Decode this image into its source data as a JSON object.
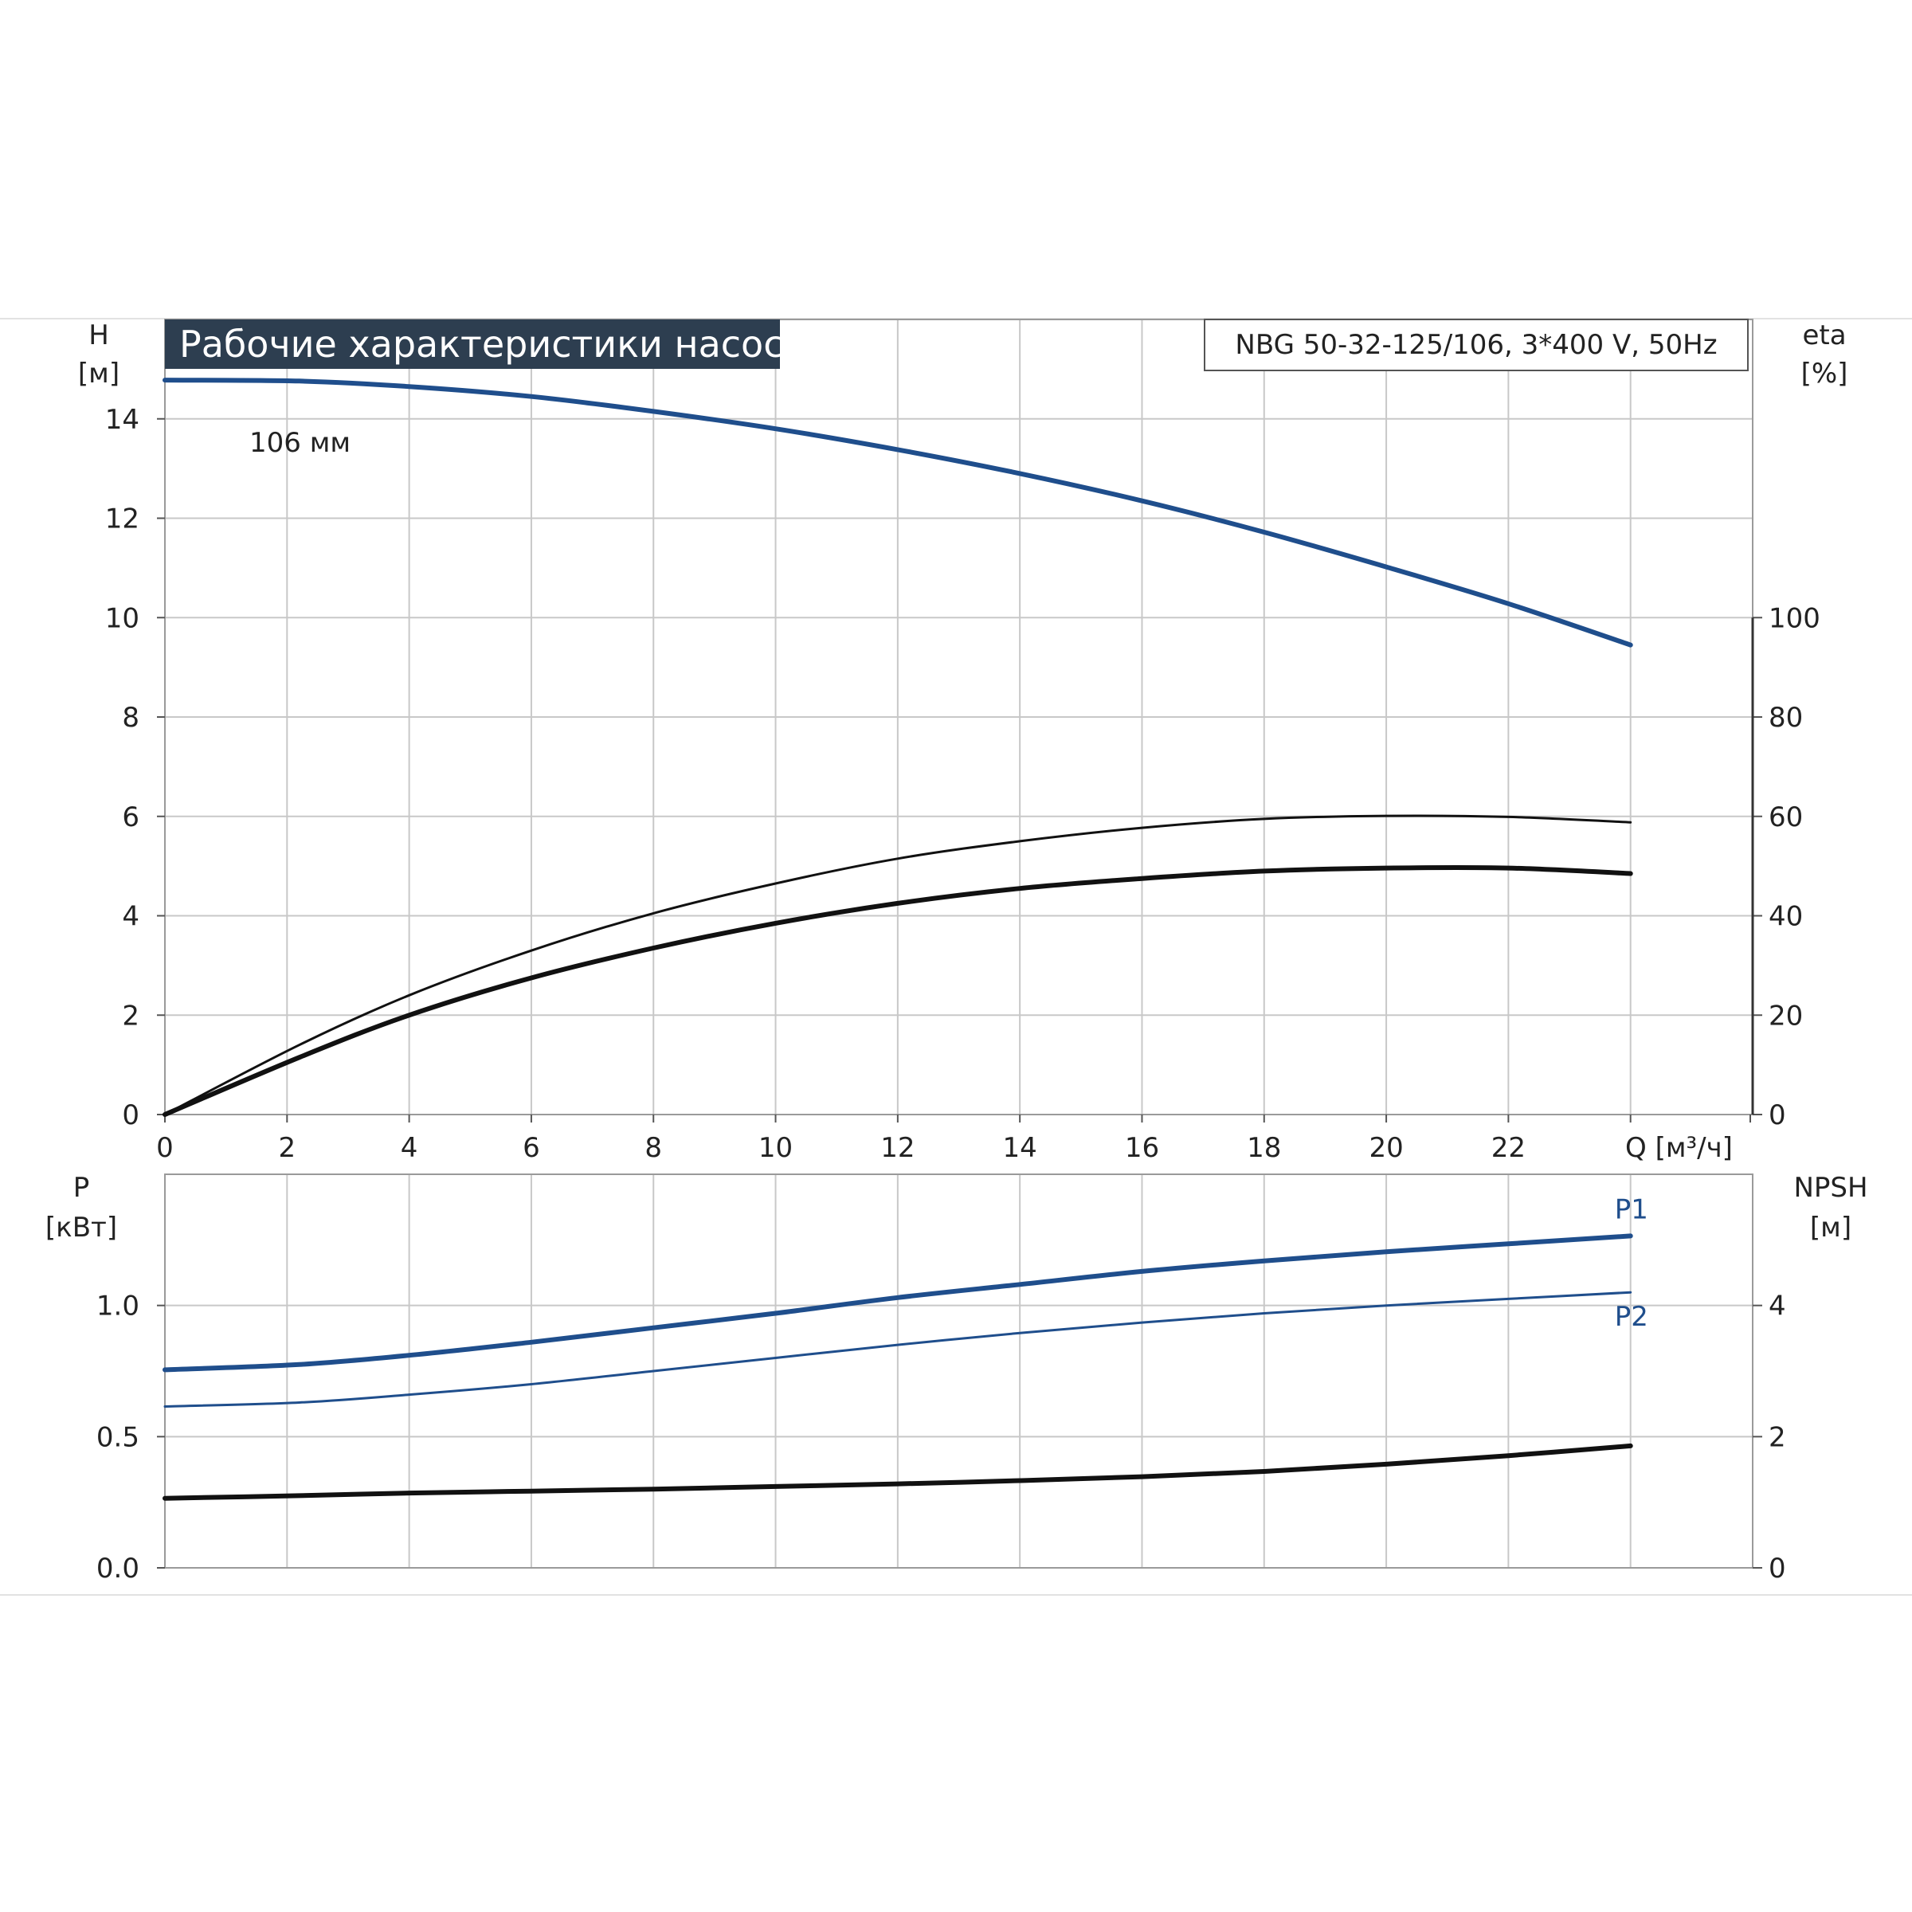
{
  "header": {
    "title": "Рабочие характеристики насоса",
    "model": "NBG 50-32-125/106, 3*400 V, 50Hz"
  },
  "colors": {
    "head_curve": "#1f4e8c",
    "power_curve": "#1f4e8c",
    "efficiency_curve": "#111111",
    "npsh_curve": "#111111",
    "grid": "#c8c8c8",
    "title_bg": "#2d3e50"
  },
  "chart_data": [
    {
      "type": "line",
      "panel": "top",
      "xlabel": "Q [м³/ч]",
      "ylabel_left": "H [м]",
      "ylabel_right": "eta [%]",
      "left_label_line1": "H",
      "left_label_line2": "[м]",
      "right_label_line1": "eta",
      "right_label_line2": "[%]",
      "xlim": [
        0,
        26
      ],
      "ylim_left": [
        0,
        16
      ],
      "ylim_right": [
        0,
        160
      ],
      "x_ticks": [
        0,
        2,
        4,
        6,
        8,
        10,
        12,
        14,
        16,
        18,
        20,
        22
      ],
      "y_ticks_left": [
        0,
        2,
        4,
        6,
        8,
        10,
        12,
        14
      ],
      "y_ticks_right": [
        0,
        20,
        40,
        60,
        80,
        100
      ],
      "grid": true,
      "annotations": [
        {
          "text": "106 мм"
        }
      ],
      "series": [
        {
          "key": "head",
          "axis": "left",
          "stroke": 6,
          "x": [
            0,
            2.2,
            4,
            6,
            8,
            10,
            12,
            14,
            16,
            18,
            20,
            22,
            24
          ],
          "y": [
            14.78,
            14.76,
            14.65,
            14.45,
            14.15,
            13.8,
            13.38,
            12.9,
            12.35,
            11.72,
            11.02,
            10.28,
            9.45
          ]
        },
        {
          "key": "eta_upper",
          "axis": "right",
          "stroke": 3,
          "x": [
            0,
            2.2,
            4,
            6,
            8,
            10,
            12,
            14,
            16,
            18,
            20,
            22,
            24
          ],
          "y": [
            0,
            14,
            24,
            33,
            40.5,
            46.5,
            51.5,
            55,
            57.7,
            59.5,
            60.1,
            59.9,
            58.8
          ]
        },
        {
          "key": "eta_lower",
          "axis": "right",
          "stroke": 6,
          "x": [
            0,
            2.2,
            4,
            6,
            8,
            10,
            12,
            14,
            16,
            18,
            20,
            22,
            24
          ],
          "y": [
            0,
            11.5,
            20,
            27.5,
            33.5,
            38.5,
            42.5,
            45.5,
            47.5,
            49,
            49.6,
            49.6,
            48.5
          ]
        }
      ]
    },
    {
      "type": "line",
      "panel": "bottom",
      "ylabel_left": "P [кВт]",
      "ylabel_right": "NPSH [м]",
      "left_label_line1": "P",
      "left_label_line2": "[кВт]",
      "right_label_line1": "NPSH",
      "right_label_line2": "[м]",
      "xlim": [
        0,
        26
      ],
      "ylim_left": [
        0,
        1.5
      ],
      "ylim_right": [
        0,
        6
      ],
      "y_ticks_left": [
        0.0,
        0.5,
        1.0
      ],
      "y_ticks_left_labels": [
        "0.0",
        "0.5",
        "1.0"
      ],
      "y_ticks_right": [
        0,
        2,
        4
      ],
      "grid": true,
      "series": [
        {
          "name": "P1",
          "axis": "left",
          "stroke": 6,
          "x": [
            0,
            2.2,
            4,
            6,
            8,
            10,
            12,
            14,
            16,
            18,
            20,
            22,
            24
          ],
          "y": [
            0.755,
            0.775,
            0.81,
            0.86,
            0.915,
            0.97,
            1.03,
            1.08,
            1.13,
            1.17,
            1.205,
            1.235,
            1.265
          ]
        },
        {
          "name": "P2",
          "axis": "left",
          "stroke": 3,
          "x": [
            0,
            2.2,
            4,
            6,
            8,
            10,
            12,
            14,
            16,
            18,
            20,
            22,
            24
          ],
          "y": [
            0.615,
            0.63,
            0.66,
            0.7,
            0.75,
            0.8,
            0.85,
            0.895,
            0.935,
            0.97,
            1.0,
            1.025,
            1.05
          ]
        },
        {
          "key": "npsh",
          "axis": "right",
          "stroke": 6,
          "x": [
            0,
            2.2,
            4,
            6,
            8,
            10,
            12,
            14,
            16,
            18,
            20,
            22,
            24
          ],
          "y": [
            1.06,
            1.1,
            1.14,
            1.17,
            1.2,
            1.24,
            1.28,
            1.33,
            1.39,
            1.47,
            1.58,
            1.71,
            1.86
          ]
        }
      ]
    }
  ]
}
